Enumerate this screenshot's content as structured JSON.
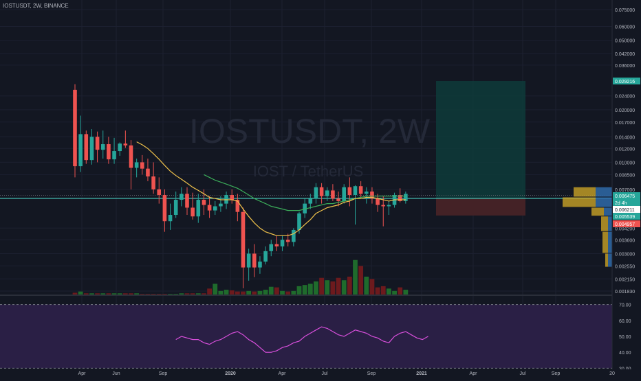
{
  "header": {
    "symbol_line": "IOSTUSDT, 2W, BINANCE"
  },
  "watermark": {
    "title": "IOSTUSDT, 2W",
    "subtitle": "IOST / TetherUS"
  },
  "colors": {
    "background": "#131722",
    "up": "#26a69a",
    "down": "#ef5350",
    "vol_up": "#1f6b2c",
    "vol_down": "#6d1a1d",
    "ema_fast": "#f0c24b",
    "ema_slow": "#3cae5a",
    "rsi_line": "#d94fdc",
    "rsi_band": "#2a1f45",
    "hline": "#4fe3d3",
    "target_zone": "#0e3b3a",
    "stop_zone": "#4a2327"
  },
  "chart_data": {
    "type": "candlestick",
    "price_scale": "log",
    "time_axis_labels": [
      "Apr",
      "Jun",
      "Sep",
      "2020",
      "Apr",
      "Jul",
      "Sep",
      "2021",
      "Apr",
      "Jul",
      "Sep",
      "20"
    ],
    "price_axis_labels": [
      "0.075000",
      "0.060000",
      "0.050000",
      "0.042000",
      "0.036000",
      "0.024000",
      "0.020000",
      "0.017000",
      "0.014000",
      "0.012000",
      "0.010000",
      "0.008500",
      "0.007000",
      "0.004200",
      "0.003600",
      "0.003000",
      "0.002550",
      "0.002150",
      "0.001830"
    ],
    "price_badges": [
      {
        "label": "0.029216",
        "value": 0.029216,
        "color": "#26a69a"
      },
      {
        "label": "0.006475",
        "value": 0.006475,
        "color": "#26a69a"
      },
      {
        "label": "2d 4h",
        "value": 0.00625,
        "color": "#26a69a"
      },
      {
        "label": "0.006211",
        "value": 0.006211,
        "color": "#ffffff"
      },
      {
        "label": "0.005539",
        "value": 0.005539,
        "color": "#26a69a"
      },
      {
        "label": "0.004957",
        "value": 0.004957,
        "color": "#ef5350"
      }
    ],
    "candles": [
      {
        "o": 0.026,
        "h": 0.028,
        "l": 0.0082,
        "c": 0.0095
      },
      {
        "o": 0.0095,
        "h": 0.0185,
        "l": 0.0088,
        "c": 0.0145
      },
      {
        "o": 0.0145,
        "h": 0.0152,
        "l": 0.0098,
        "c": 0.0103
      },
      {
        "o": 0.0103,
        "h": 0.0155,
        "l": 0.0097,
        "c": 0.014
      },
      {
        "o": 0.014,
        "h": 0.015,
        "l": 0.01,
        "c": 0.0118
      },
      {
        "o": 0.0118,
        "h": 0.0152,
        "l": 0.0105,
        "c": 0.0127
      },
      {
        "o": 0.0127,
        "h": 0.014,
        "l": 0.0098,
        "c": 0.0104
      },
      {
        "o": 0.0104,
        "h": 0.0138,
        "l": 0.0098,
        "c": 0.0116
      },
      {
        "o": 0.0116,
        "h": 0.013,
        "l": 0.0109,
        "c": 0.0128
      },
      {
        "o": 0.0128,
        "h": 0.0152,
        "l": 0.0121,
        "c": 0.0125
      },
      {
        "o": 0.0125,
        "h": 0.0134,
        "l": 0.007,
        "c": 0.0093
      },
      {
        "o": 0.0093,
        "h": 0.0105,
        "l": 0.0082,
        "c": 0.01
      },
      {
        "o": 0.01,
        "h": 0.011,
        "l": 0.0085,
        "c": 0.0092
      },
      {
        "o": 0.0092,
        "h": 0.0105,
        "l": 0.0078,
        "c": 0.0083
      },
      {
        "o": 0.0083,
        "h": 0.01,
        "l": 0.0066,
        "c": 0.007
      },
      {
        "o": 0.007,
        "h": 0.0082,
        "l": 0.0058,
        "c": 0.0065
      },
      {
        "o": 0.0065,
        "h": 0.007,
        "l": 0.004,
        "c": 0.0046
      },
      {
        "o": 0.0046,
        "h": 0.0058,
        "l": 0.0041,
        "c": 0.005
      },
      {
        "o": 0.005,
        "h": 0.0068,
        "l": 0.0048,
        "c": 0.0061
      },
      {
        "o": 0.0061,
        "h": 0.0072,
        "l": 0.0056,
        "c": 0.0066
      },
      {
        "o": 0.0066,
        "h": 0.0072,
        "l": 0.005,
        "c": 0.0055
      },
      {
        "o": 0.0055,
        "h": 0.0067,
        "l": 0.0047,
        "c": 0.0049
      },
      {
        "o": 0.0049,
        "h": 0.0066,
        "l": 0.0045,
        "c": 0.0061
      },
      {
        "o": 0.0061,
        "h": 0.007,
        "l": 0.005,
        "c": 0.0057
      },
      {
        "o": 0.0057,
        "h": 0.0064,
        "l": 0.0048,
        "c": 0.0053
      },
      {
        "o": 0.0053,
        "h": 0.006,
        "l": 0.005,
        "c": 0.0056
      },
      {
        "o": 0.0056,
        "h": 0.0064,
        "l": 0.0052,
        "c": 0.0058
      },
      {
        "o": 0.0058,
        "h": 0.0068,
        "l": 0.0054,
        "c": 0.0065
      },
      {
        "o": 0.0065,
        "h": 0.007,
        "l": 0.0058,
        "c": 0.0061
      },
      {
        "o": 0.0061,
        "h": 0.0066,
        "l": 0.0046,
        "c": 0.0052
      },
      {
        "o": 0.0052,
        "h": 0.0055,
        "l": 0.0019,
        "c": 0.0025
      },
      {
        "o": 0.0025,
        "h": 0.0032,
        "l": 0.0021,
        "c": 0.003
      },
      {
        "o": 0.003,
        "h": 0.0034,
        "l": 0.0022,
        "c": 0.0025
      },
      {
        "o": 0.0025,
        "h": 0.0029,
        "l": 0.0023,
        "c": 0.0027
      },
      {
        "o": 0.0027,
        "h": 0.0033,
        "l": 0.0026,
        "c": 0.0031
      },
      {
        "o": 0.0031,
        "h": 0.0036,
        "l": 0.0029,
        "c": 0.0034
      },
      {
        "o": 0.0034,
        "h": 0.0038,
        "l": 0.0031,
        "c": 0.0033
      },
      {
        "o": 0.0033,
        "h": 0.0038,
        "l": 0.0031,
        "c": 0.0036
      },
      {
        "o": 0.0036,
        "h": 0.0039,
        "l": 0.0033,
        "c": 0.0035
      },
      {
        "o": 0.0035,
        "h": 0.0042,
        "l": 0.0033,
        "c": 0.0041
      },
      {
        "o": 0.0041,
        "h": 0.0052,
        "l": 0.0039,
        "c": 0.0051
      },
      {
        "o": 0.0051,
        "h": 0.0062,
        "l": 0.0048,
        "c": 0.0058
      },
      {
        "o": 0.0058,
        "h": 0.0066,
        "l": 0.0054,
        "c": 0.0062
      },
      {
        "o": 0.0062,
        "h": 0.0076,
        "l": 0.0058,
        "c": 0.0072
      },
      {
        "o": 0.0072,
        "h": 0.0076,
        "l": 0.0058,
        "c": 0.0064
      },
      {
        "o": 0.0064,
        "h": 0.0072,
        "l": 0.006,
        "c": 0.0069
      },
      {
        "o": 0.0069,
        "h": 0.0075,
        "l": 0.006,
        "c": 0.0062
      },
      {
        "o": 0.0062,
        "h": 0.0068,
        "l": 0.0056,
        "c": 0.006
      },
      {
        "o": 0.006,
        "h": 0.0075,
        "l": 0.0058,
        "c": 0.0072
      },
      {
        "o": 0.0072,
        "h": 0.0082,
        "l": 0.0056,
        "c": 0.0065
      },
      {
        "o": 0.0065,
        "h": 0.0074,
        "l": 0.0044,
        "c": 0.0073
      },
      {
        "o": 0.0073,
        "h": 0.0078,
        "l": 0.0063,
        "c": 0.0066
      },
      {
        "o": 0.0066,
        "h": 0.0072,
        "l": 0.0058,
        "c": 0.0068
      },
      {
        "o": 0.0068,
        "h": 0.0072,
        "l": 0.0058,
        "c": 0.0062
      },
      {
        "o": 0.0062,
        "h": 0.0066,
        "l": 0.0052,
        "c": 0.0057
      },
      {
        "o": 0.0057,
        "h": 0.0064,
        "l": 0.0043,
        "c": 0.0056
      },
      {
        "o": 0.0056,
        "h": 0.006,
        "l": 0.005,
        "c": 0.0057
      },
      {
        "o": 0.0057,
        "h": 0.0067,
        "l": 0.0055,
        "c": 0.0065
      },
      {
        "o": 0.0065,
        "h": 0.0071,
        "l": 0.0059,
        "c": 0.006
      },
      {
        "o": 0.006,
        "h": 0.0068,
        "l": 0.0058,
        "c": 0.0066
      }
    ],
    "ema_fast": [
      null,
      null,
      null,
      null,
      null,
      null,
      null,
      null,
      null,
      null,
      null,
      0.0131,
      0.0126,
      0.012,
      0.0112,
      0.0104,
      0.0096,
      0.0089,
      0.0084,
      0.008,
      0.0076,
      0.0072,
      0.0069,
      0.0066,
      0.0063,
      0.0062,
      0.0061,
      0.0061,
      0.0061,
      0.006,
      0.0054,
      0.0049,
      0.0045,
      0.0042,
      0.004,
      0.0039,
      0.0038,
      0.0038,
      0.0038,
      0.0039,
      0.0041,
      0.0044,
      0.0047,
      0.0051,
      0.0053,
      0.0055,
      0.0056,
      0.0057,
      0.0059,
      0.006,
      0.0062,
      0.0062,
      0.0063,
      0.0063,
      0.0062,
      0.0061,
      0.006,
      0.0061,
      0.0061,
      0.0061
    ],
    "ema_slow": [
      null,
      null,
      null,
      null,
      null,
      null,
      null,
      null,
      null,
      null,
      null,
      null,
      null,
      null,
      null,
      null,
      null,
      null,
      null,
      null,
      null,
      null,
      null,
      0.0085,
      0.0082,
      0.0079,
      0.0077,
      0.0075,
      0.0073,
      0.0071,
      0.0068,
      0.0065,
      0.0062,
      0.006,
      0.0058,
      0.0056,
      0.0055,
      0.0054,
      0.0053,
      0.0053,
      0.0053,
      0.0054,
      0.0055,
      0.0056,
      0.0057,
      0.0058,
      0.0058,
      0.0059,
      0.006,
      0.0061,
      0.0062,
      0.0063,
      0.0064,
      0.0064,
      0.0064,
      0.0064,
      0.0064,
      0.0064,
      0.0064,
      0.0064
    ],
    "volume": [
      3,
      5,
      2,
      2,
      2,
      2,
      2,
      2,
      2,
      2,
      2,
      2,
      1,
      1,
      1,
      1,
      1,
      1,
      1,
      2,
      2,
      2,
      2,
      2,
      10,
      18,
      6,
      8,
      7,
      5,
      5,
      6,
      5,
      6,
      8,
      13,
      12,
      6,
      5,
      6,
      14,
      16,
      18,
      22,
      28,
      24,
      22,
      28,
      24,
      30,
      58,
      48,
      30,
      26,
      12,
      14,
      10,
      6,
      12,
      8
    ],
    "rsi": {
      "ylim": [
        30,
        70
      ],
      "ticks": [
        "70.00",
        "60.00",
        "50.00",
        "40.00",
        "30.00"
      ],
      "upper": 70,
      "lower": 30,
      "values": [
        48,
        50,
        49,
        48,
        48,
        46,
        45,
        47,
        48,
        50,
        52,
        53,
        51,
        48,
        46,
        43,
        40,
        40,
        41,
        43,
        44,
        46,
        47,
        50,
        52,
        54,
        56,
        55,
        53,
        51,
        50,
        52,
        54,
        53,
        52,
        50,
        49,
        47,
        46,
        50,
        52,
        53,
        51,
        49,
        48,
        50
      ]
    }
  },
  "position_tool": {
    "target": 0.029216,
    "entry": 0.006211,
    "stop": 0.004957
  }
}
